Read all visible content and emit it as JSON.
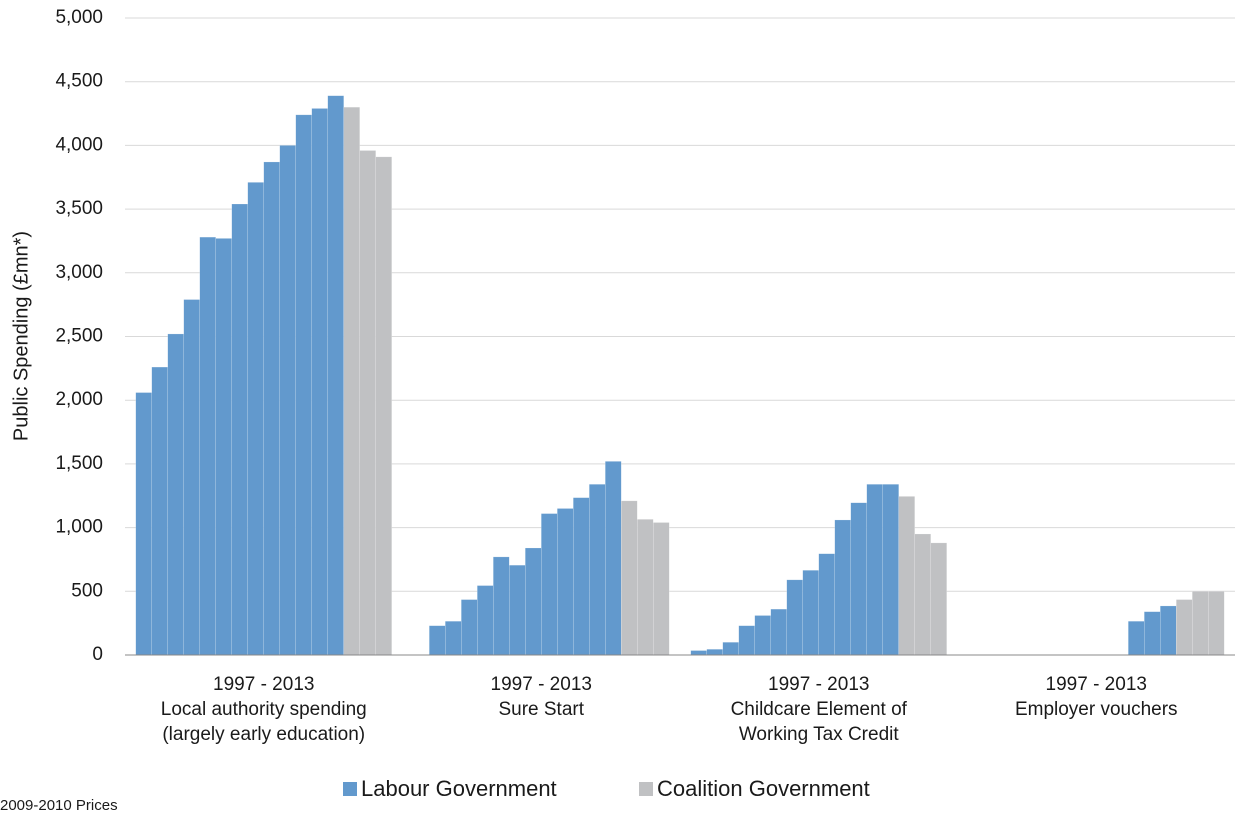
{
  "chart_data": {
    "type": "bar",
    "y_axis_label": "Public Spending (£mn*)",
    "footnote": "2009-2010 Prices",
    "categories": [
      [
        "1997 - 2013",
        "Local authority spending",
        "(largely early education)"
      ],
      [
        "1997 - 2013",
        "Sure Start"
      ],
      [
        "1997 - 2013",
        "Childcare Element of",
        "Working Tax Credit"
      ],
      [
        "1997 - 2013",
        "Employer vouchers"
      ]
    ],
    "series": [
      {
        "name": "Labour Government",
        "color": "#6299cd",
        "values": [
          [
            2060,
            2260,
            2520,
            2790,
            3280,
            3270,
            3540,
            3710,
            3870,
            4000,
            4240,
            4290,
            4390
          ],
          [
            null,
            230,
            265,
            435,
            545,
            770,
            705,
            840,
            1110,
            1150,
            1235,
            1340,
            1520
          ],
          [
            35,
            45,
            100,
            230,
            310,
            360,
            590,
            665,
            795,
            1060,
            1195,
            1340,
            1340
          ],
          [
            null,
            null,
            null,
            null,
            null,
            null,
            null,
            null,
            null,
            null,
            265,
            340,
            385
          ]
        ]
      },
      {
        "name": "Coalition Government",
        "color": "#c0c1c3",
        "values": [
          [
            4300,
            3960,
            3910
          ],
          [
            1210,
            1065,
            1040
          ],
          [
            1245,
            950,
            880
          ],
          [
            435,
            500,
            500
          ]
        ]
      }
    ],
    "ylim": [
      0,
      5000
    ],
    "yticks": [
      0,
      500,
      {
        "value": 1000,
        "label": "1,000"
      },
      {
        "value": 1500,
        "label": "1,500"
      },
      {
        "value": 2000,
        "label": "2,000"
      },
      {
        "value": 2500,
        "label": "2,500"
      },
      {
        "value": 3000,
        "label": "3,000"
      },
      {
        "value": 3500,
        "label": "3,500"
      },
      {
        "value": 4000,
        "label": "4,000"
      },
      {
        "value": 4500,
        "label": "4,500"
      },
      {
        "value": 5000,
        "label": "5,000"
      }
    ],
    "grid": true
  }
}
